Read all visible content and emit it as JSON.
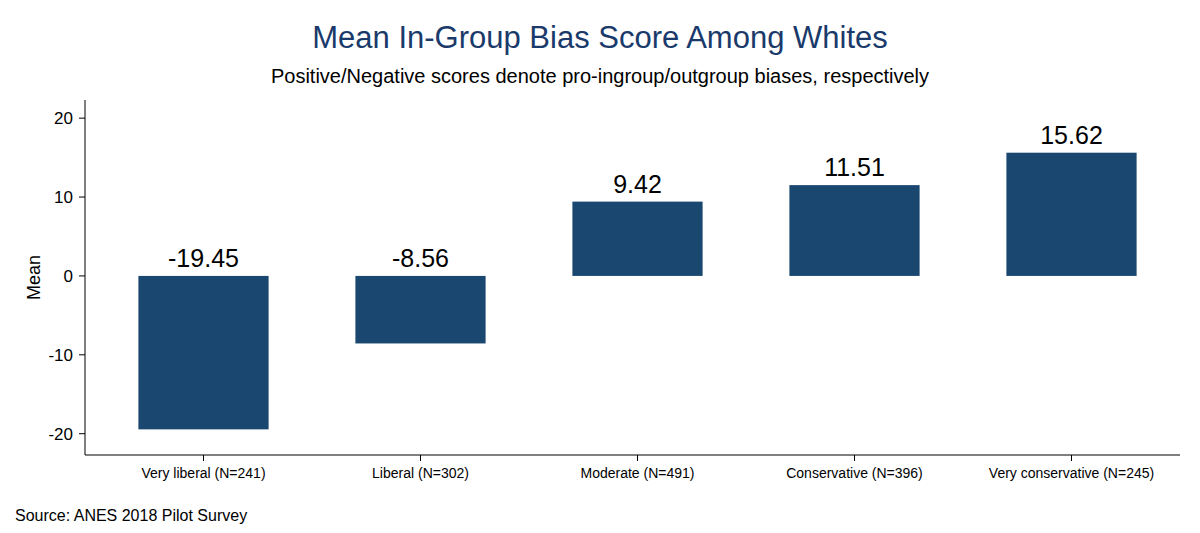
{
  "chart_data": {
    "type": "bar",
    "title": "Mean In-Group Bias Score Among Whites",
    "subtitle": "Positive/Negative scores denote pro-ingroup/outgroup biases, respectively",
    "y_label": "Mean",
    "note": "Source: ANES 2018 Pilot Survey",
    "categories": [
      "Very liberal (N=241)",
      "Liberal (N=302)",
      "Moderate (N=491)",
      "Conservative (N=396)",
      "Very conservative (N=245)"
    ],
    "values": [
      -19.45,
      -8.56,
      9.42,
      11.51,
      15.62
    ],
    "color": "#1a476f",
    "ylim": [
      -22.7,
      22.3
    ],
    "yticks": [
      -20,
      -10,
      0,
      10,
      20
    ],
    "grid": false,
    "data_labels": true
  }
}
